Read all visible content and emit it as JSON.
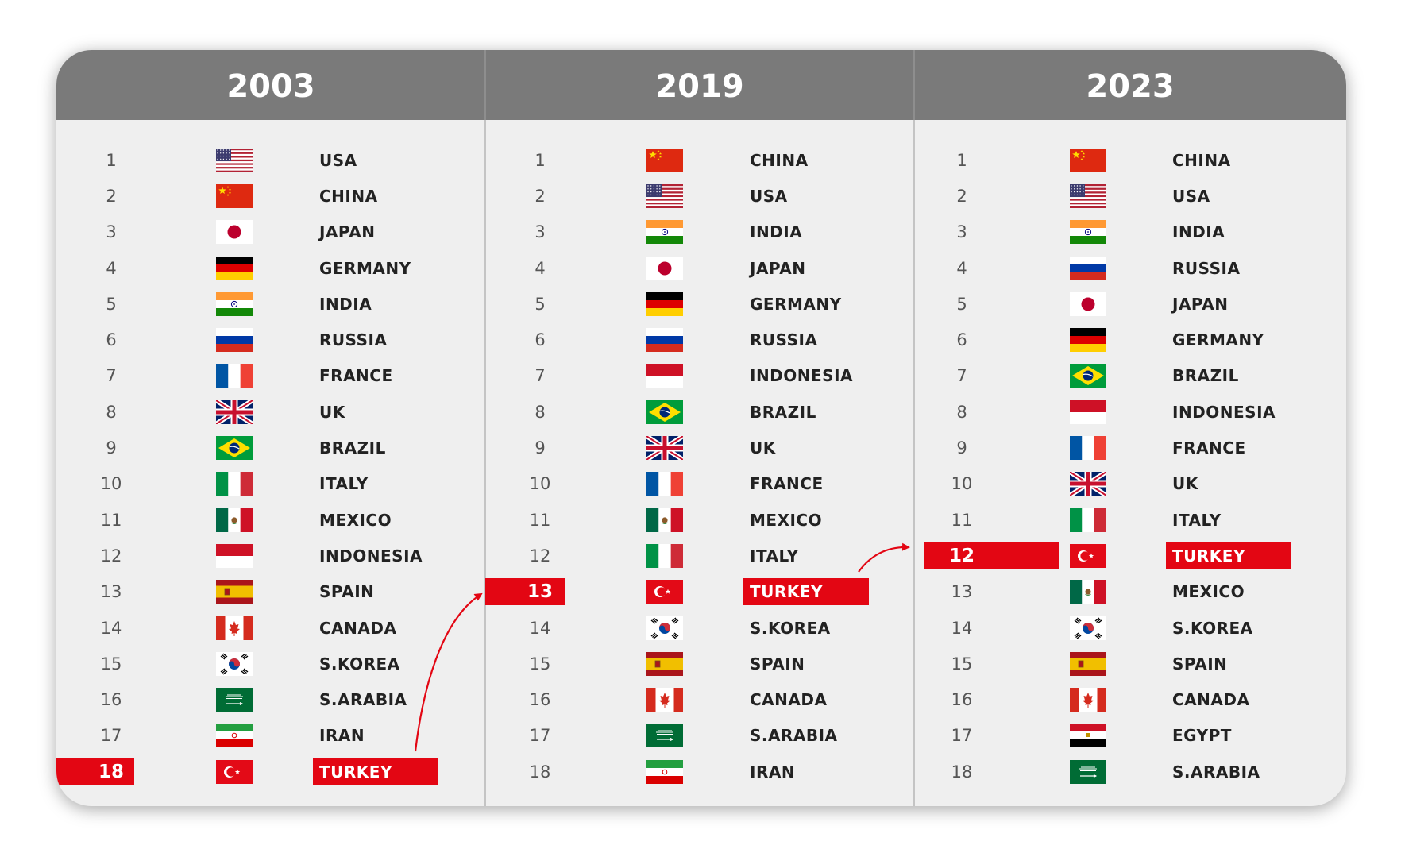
{
  "accent_color": "#e30613",
  "columns": [
    {
      "year": "2003",
      "highlight_rank": 18,
      "rows": [
        {
          "rank": "1",
          "country": "USA",
          "flag": "us-flag-icon"
        },
        {
          "rank": "2",
          "country": "CHINA",
          "flag": "cn-flag-icon"
        },
        {
          "rank": "3",
          "country": "JAPAN",
          "flag": "jp-flag-icon"
        },
        {
          "rank": "4",
          "country": "GERMANY",
          "flag": "de-flag-icon"
        },
        {
          "rank": "5",
          "country": "INDIA",
          "flag": "in-flag-icon"
        },
        {
          "rank": "6",
          "country": "RUSSIA",
          "flag": "ru-flag-icon"
        },
        {
          "rank": "7",
          "country": "FRANCE",
          "flag": "fr-flag-icon"
        },
        {
          "rank": "8",
          "country": "UK",
          "flag": "gb-flag-icon"
        },
        {
          "rank": "9",
          "country": "BRAZIL",
          "flag": "br-flag-icon"
        },
        {
          "rank": "10",
          "country": "ITALY",
          "flag": "it-flag-icon"
        },
        {
          "rank": "11",
          "country": "MEXICO",
          "flag": "mx-flag-icon"
        },
        {
          "rank": "12",
          "country": "INDONESIA",
          "flag": "id-flag-icon"
        },
        {
          "rank": "13",
          "country": "SPAIN",
          "flag": "es-flag-icon"
        },
        {
          "rank": "14",
          "country": "CANADA",
          "flag": "ca-flag-icon"
        },
        {
          "rank": "15",
          "country": "S.KOREA",
          "flag": "kr-flag-icon"
        },
        {
          "rank": "16",
          "country": "S.ARABIA",
          "flag": "sa-flag-icon"
        },
        {
          "rank": "17",
          "country": "IRAN",
          "flag": "ir-flag-icon"
        },
        {
          "rank": "18",
          "country": "TURKEY",
          "flag": "tr-flag-icon"
        }
      ]
    },
    {
      "year": "2019",
      "highlight_rank": 13,
      "rows": [
        {
          "rank": "1",
          "country": "CHINA",
          "flag": "cn-flag-icon"
        },
        {
          "rank": "2",
          "country": "USA",
          "flag": "us-flag-icon"
        },
        {
          "rank": "3",
          "country": "INDIA",
          "flag": "in-flag-icon"
        },
        {
          "rank": "4",
          "country": "JAPAN",
          "flag": "jp-flag-icon"
        },
        {
          "rank": "5",
          "country": "GERMANY",
          "flag": "de-flag-icon"
        },
        {
          "rank": "6",
          "country": "RUSSIA",
          "flag": "ru-flag-icon"
        },
        {
          "rank": "7",
          "country": "INDONESIA",
          "flag": "id-flag-icon"
        },
        {
          "rank": "8",
          "country": "BRAZIL",
          "flag": "br-flag-icon"
        },
        {
          "rank": "9",
          "country": "UK",
          "flag": "gb-flag-icon"
        },
        {
          "rank": "10",
          "country": "FRANCE",
          "flag": "fr-flag-icon"
        },
        {
          "rank": "11",
          "country": "MEXICO",
          "flag": "mx-flag-icon"
        },
        {
          "rank": "12",
          "country": "ITALY",
          "flag": "it-flag-icon"
        },
        {
          "rank": "13",
          "country": "TURKEY",
          "flag": "tr-flag-icon"
        },
        {
          "rank": "14",
          "country": "S.KOREA",
          "flag": "kr-flag-icon"
        },
        {
          "rank": "15",
          "country": "SPAIN",
          "flag": "es-flag-icon"
        },
        {
          "rank": "16",
          "country": "CANADA",
          "flag": "ca-flag-icon"
        },
        {
          "rank": "17",
          "country": "S.ARABIA",
          "flag": "sa-flag-icon"
        },
        {
          "rank": "18",
          "country": "IRAN",
          "flag": "ir-flag-icon"
        }
      ]
    },
    {
      "year": "2023",
      "highlight_rank": 12,
      "rows": [
        {
          "rank": "1",
          "country": "CHINA",
          "flag": "cn-flag-icon"
        },
        {
          "rank": "2",
          "country": "USA",
          "flag": "us-flag-icon"
        },
        {
          "rank": "3",
          "country": "INDIA",
          "flag": "in-flag-icon"
        },
        {
          "rank": "4",
          "country": "RUSSIA",
          "flag": "ru-flag-icon"
        },
        {
          "rank": "5",
          "country": "JAPAN",
          "flag": "jp-flag-icon"
        },
        {
          "rank": "6",
          "country": "GERMANY",
          "flag": "de-flag-icon"
        },
        {
          "rank": "7",
          "country": "BRAZIL",
          "flag": "br-flag-icon"
        },
        {
          "rank": "8",
          "country": "INDONESIA",
          "flag": "id-flag-icon"
        },
        {
          "rank": "9",
          "country": "FRANCE",
          "flag": "fr-flag-icon"
        },
        {
          "rank": "10",
          "country": "UK",
          "flag": "gb-flag-icon"
        },
        {
          "rank": "11",
          "country": "ITALY",
          "flag": "it-flag-icon"
        },
        {
          "rank": "12",
          "country": "TURKEY",
          "flag": "tr-flag-icon"
        },
        {
          "rank": "13",
          "country": "MEXICO",
          "flag": "mx-flag-icon"
        },
        {
          "rank": "14",
          "country": "S.KOREA",
          "flag": "kr-flag-icon"
        },
        {
          "rank": "15",
          "country": "SPAIN",
          "flag": "es-flag-icon"
        },
        {
          "rank": "16",
          "country": "CANADA",
          "flag": "ca-flag-icon"
        },
        {
          "rank": "17",
          "country": "EGYPT",
          "flag": "eg-flag-icon"
        },
        {
          "rank": "18",
          "country": "S.ARABIA",
          "flag": "sa-flag-icon"
        }
      ]
    }
  ]
}
